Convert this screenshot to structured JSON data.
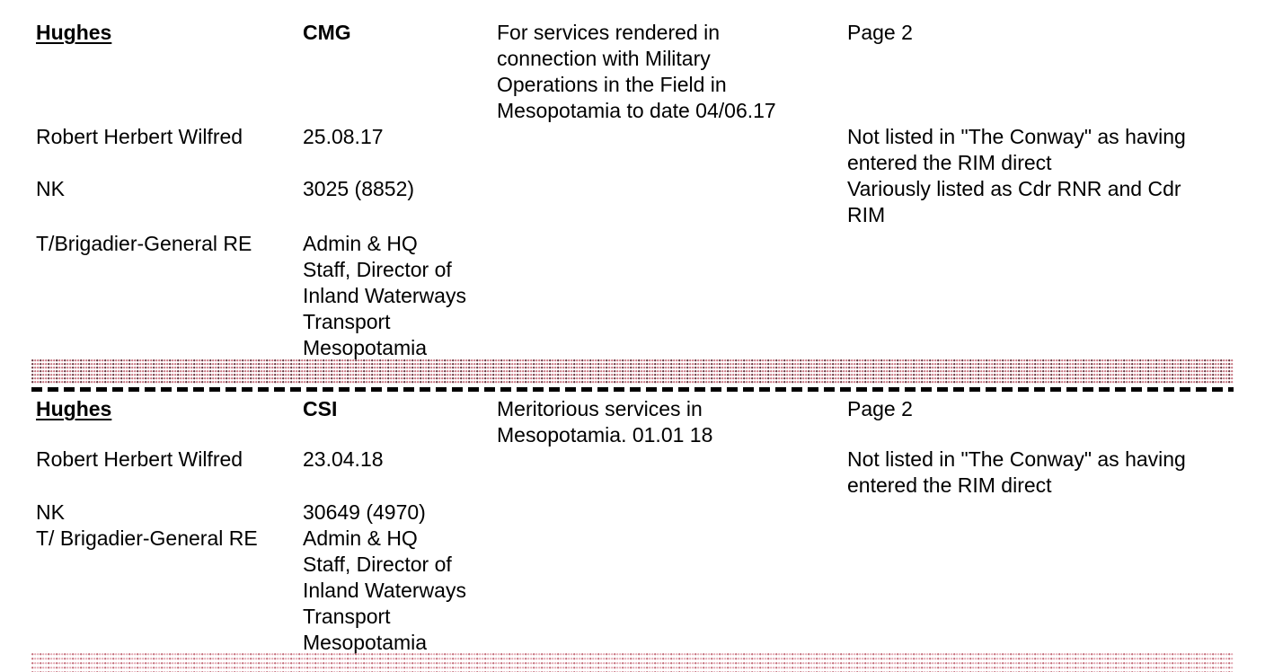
{
  "page": {
    "background_color": "#ffffff",
    "text_color": "#000000"
  },
  "separators": {
    "stipple_band_color": "#c4707c",
    "stipple_band_dark_accent": "#46242b",
    "stipple_band_light_color": "#e3a9b2",
    "dashed_rule_color": "#000000"
  },
  "sections": [
    {
      "surname": "Hughes",
      "award": "CMG",
      "citation": "For services rendered in\nconnection with Military\nOperations in the Field in\nMesopotamia to date 04/06.17",
      "page": "Page 2",
      "forenames": "Robert Herbert Wilfred",
      "award_date": "25.08.17",
      "note_1": "Not listed in \"The Conway\" as having\nentered the RIM direct",
      "service_record": "NK",
      "number": "3025 (8852)",
      "note_2": "Variously listed as Cdr RNR and Cdr\nRIM",
      "rank": "T/Brigadier-General RE",
      "appointment": "Admin & HQ\nStaff, Director of\nInland Waterways\nTransport\nMesopotamia"
    },
    {
      "surname": "Hughes",
      "award": "CSI",
      "citation": "Meritorious services in\nMesopotamia. 01.01 18",
      "page": "Page 2",
      "forenames": "Robert Herbert Wilfred",
      "award_date": "23.04.18",
      "note_1": "Not listed in \"The Conway\" as having\nentered the RIM direct",
      "service_record": "NK",
      "number": "30649 (4970)",
      "rank": "T/ Brigadier-General RE",
      "appointment": "Admin & HQ\nStaff, Director of\nInland Waterways\nTransport\nMesopotamia"
    }
  ]
}
